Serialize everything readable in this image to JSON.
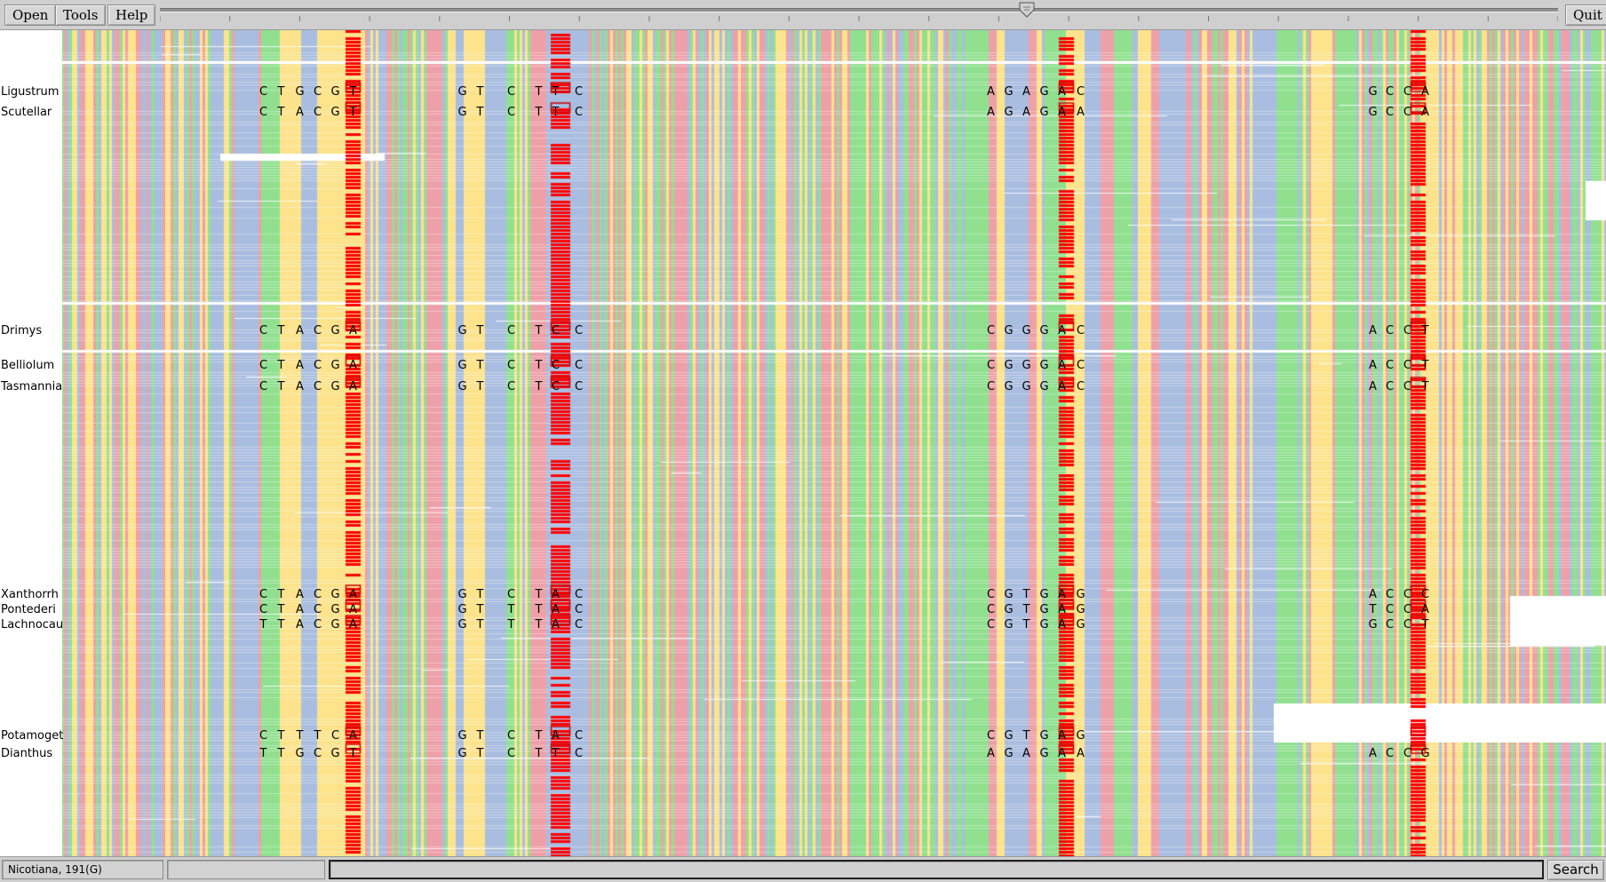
{
  "toolbar": {
    "open_label": "Open",
    "tools_label": "Tools",
    "help_label": "Help",
    "quit_label": "Quit"
  },
  "colors": {
    "A": "#90e090",
    "C": "#a9bde0",
    "G": "#fce38c",
    "T": "#eea0a8",
    "highlight": "#ff0000",
    "background": "#ffffff"
  },
  "taxa": [
    {
      "name": "Ligustrum",
      "bases": [
        "C",
        "T",
        "G",
        "C",
        "G",
        "T",
        "G",
        "T",
        "C",
        "T",
        "T",
        "C",
        "A",
        "G",
        "A",
        "G",
        "A",
        "C",
        "G",
        "C",
        "C",
        "A"
      ]
    },
    {
      "name": "Scutellar",
      "bases": [
        "C",
        "T",
        "A",
        "C",
        "G",
        "T",
        "G",
        "T",
        "C",
        "T",
        "T",
        "C",
        "A",
        "G",
        "A",
        "G",
        "A",
        "A",
        "G",
        "C",
        "C",
        "A"
      ]
    },
    {
      "name": "Drimys",
      "bases": [
        "C",
        "T",
        "A",
        "C",
        "G",
        "A",
        "G",
        "T",
        "C",
        "T",
        "C",
        "C",
        "C",
        "G",
        "G",
        "G",
        "A",
        "C",
        "A",
        "C",
        "C",
        "T"
      ]
    },
    {
      "name": "Belliolum",
      "bases": [
        "C",
        "T",
        "A",
        "C",
        "G",
        "A",
        "G",
        "T",
        "C",
        "T",
        "C",
        "C",
        "C",
        "G",
        "G",
        "G",
        "A",
        "C",
        "A",
        "C",
        "C",
        "T"
      ]
    },
    {
      "name": "Tasmannia",
      "bases": [
        "C",
        "T",
        "A",
        "C",
        "G",
        "A",
        "G",
        "T",
        "C",
        "T",
        "C",
        "C",
        "C",
        "G",
        "G",
        "G",
        "A",
        "C",
        "A",
        "C",
        "C",
        "T"
      ]
    },
    {
      "name": "Xanthorrh",
      "bases": [
        "C",
        "T",
        "A",
        "C",
        "G",
        "A",
        "G",
        "T",
        "C",
        "T",
        "A",
        "C",
        "C",
        "G",
        "T",
        "G",
        "A",
        "G",
        "A",
        "C",
        "C",
        "C"
      ]
    },
    {
      "name": "Pontederi",
      "bases": [
        "C",
        "T",
        "A",
        "C",
        "G",
        "A",
        "G",
        "T",
        "T",
        "T",
        "A",
        "C",
        "C",
        "G",
        "T",
        "G",
        "A",
        "G",
        "T",
        "C",
        "C",
        "A"
      ]
    },
    {
      "name": "Lachnocau",
      "bases": [
        "T",
        "T",
        "A",
        "C",
        "G",
        "A",
        "G",
        "T",
        "T",
        "T",
        "A",
        "C",
        "C",
        "G",
        "T",
        "G",
        "A",
        "G",
        "G",
        "C",
        "C",
        "T"
      ]
    },
    {
      "name": "Potamoget",
      "bases": [
        "C",
        "T",
        "T",
        "T",
        "C",
        "A",
        "G",
        "T",
        "C",
        "T",
        "A",
        "C",
        "C",
        "G",
        "T",
        "G",
        "A",
        "G",
        "",
        "",
        "",
        ""
      ]
    },
    {
      "name": "Dianthus",
      "bases": [
        "T",
        "T",
        "G",
        "C",
        "G",
        "T",
        "G",
        "T",
        "C",
        "T",
        "T",
        "C",
        "A",
        "G",
        "A",
        "G",
        "A",
        "A",
        "A",
        "C",
        "C",
        "G"
      ]
    }
  ],
  "status": {
    "text": "Nicotiana, 191(G)"
  },
  "search": {
    "value": "",
    "button_label": "Search"
  }
}
